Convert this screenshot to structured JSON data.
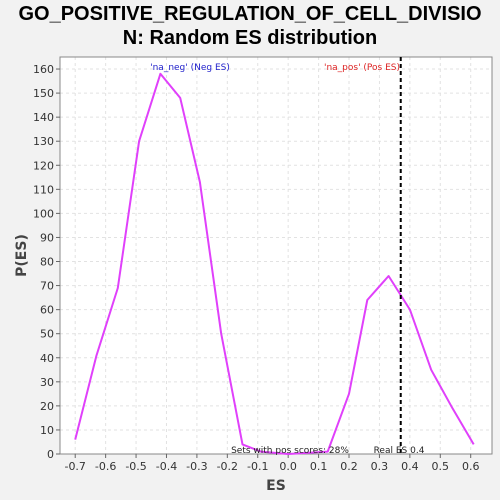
{
  "title_lines": [
    "GO_POSITIVE_REGULATION_OF_CELL_DIVISIO",
    "N: Random ES distribution"
  ],
  "chart_data": {
    "type": "line",
    "title": "GO_POSITIVE_REGULATION_OF_CELL_DIVISION: Random ES distribution",
    "xlabel": "ES",
    "ylabel": "P(ES)",
    "xlim": [
      -0.75,
      0.67
    ],
    "ylim": [
      0,
      165
    ],
    "xticks": [
      -0.7,
      -0.6,
      -0.5,
      -0.4,
      -0.3,
      -0.2,
      -0.1,
      0.0,
      0.1,
      0.2,
      0.3,
      0.4,
      0.5,
      0.6
    ],
    "xtick_labels": [
      "-0.7",
      "-0.6",
      "-0.5",
      "-0.4",
      "-0.3",
      "-0.2",
      "-0.1",
      "0.0",
      "0.1",
      "0.2",
      "0.3",
      "0.4",
      "0.5",
      "0.6"
    ],
    "yticks": [
      0,
      10,
      20,
      30,
      40,
      50,
      60,
      70,
      80,
      90,
      100,
      110,
      120,
      130,
      140,
      150,
      160
    ],
    "ytick_labels": [
      "0",
      "10",
      "20",
      "30",
      "40",
      "50",
      "60",
      "70",
      "80",
      "90",
      "100",
      "110",
      "120",
      "130",
      "140",
      "150",
      "160"
    ],
    "grid": true,
    "series": [
      {
        "color": "#e040fb",
        "x": [
          -0.7,
          -0.63,
          -0.56,
          -0.49,
          -0.42,
          -0.355,
          -0.29,
          -0.22,
          -0.15,
          -0.09,
          0.0,
          0.13,
          0.2,
          0.26,
          0.33,
          0.4,
          0.47,
          0.54,
          0.61
        ],
        "y": [
          6,
          41,
          69,
          130,
          158,
          148,
          113,
          50,
          4,
          1,
          0,
          1,
          25,
          64,
          74,
          60,
          35,
          19,
          4
        ]
      }
    ],
    "vline": {
      "x": 0.37,
      "style": "dashed",
      "color": "#000000"
    },
    "annotations": {
      "neg_label": "'na_neg' (Neg ES)",
      "neg_color": "#2222cc",
      "pos_label": "'na_pos' (Pos ES)",
      "pos_color": "#dd2222",
      "sets_label": "Sets with pos scores: 28%",
      "real_es_label": "Real ES 0.4"
    }
  }
}
